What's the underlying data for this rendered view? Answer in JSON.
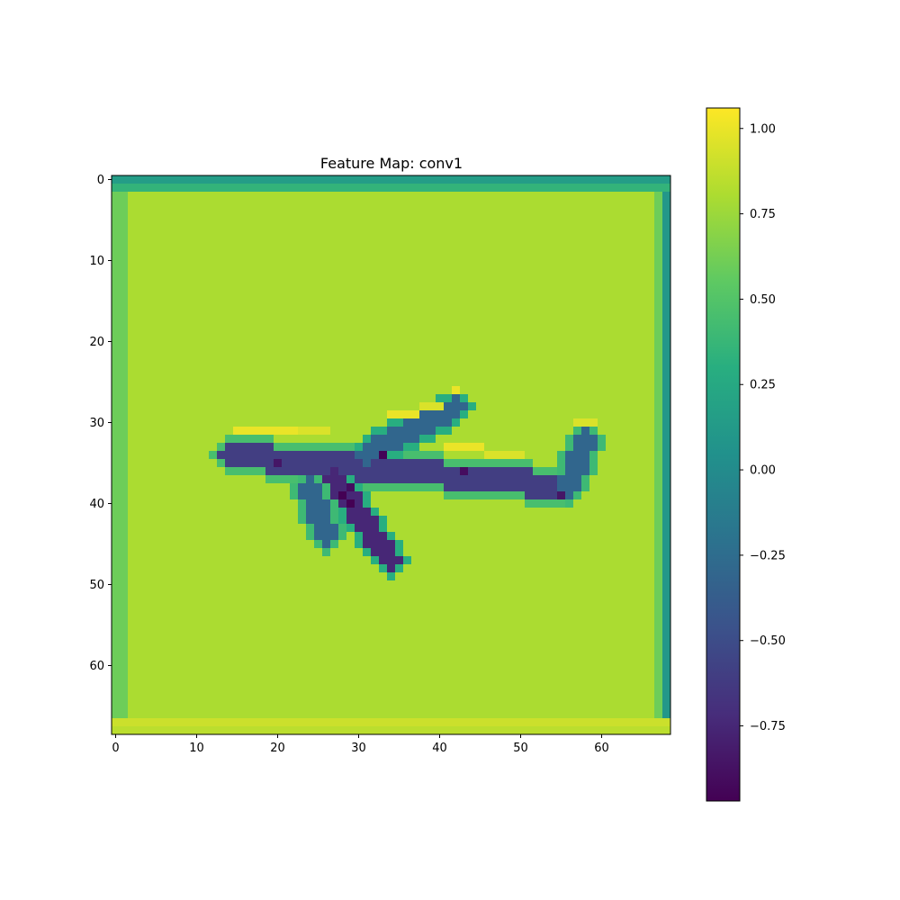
{
  "chart_data": {
    "type": "heatmap",
    "title": "Feature Map: conv1",
    "xlabel": "",
    "ylabel": "",
    "grid": false,
    "colormap": "viridis",
    "shape": [
      69,
      69
    ],
    "xlim": [
      -0.5,
      68.5
    ],
    "ylim": [
      68.5,
      -0.5
    ],
    "x_ticks": [
      0,
      10,
      20,
      30,
      40,
      50,
      60
    ],
    "y_ticks": [
      0,
      10,
      20,
      30,
      40,
      50,
      60
    ],
    "x_tick_labels": [
      "0",
      "10",
      "20",
      "30",
      "40",
      "50",
      "60"
    ],
    "y_tick_labels": [
      "0",
      "10",
      "20",
      "30",
      "40",
      "50",
      "60"
    ],
    "colorbar": {
      "range": [
        -0.97,
        1.06
      ],
      "ticks": [
        1.0,
        0.75,
        0.5,
        0.25,
        0.0,
        -0.25,
        -0.5,
        -0.75
      ],
      "tick_labels": [
        "1.00",
        "0.75",
        "0.50",
        "0.25",
        "0.00",
        "−0.25",
        "−0.50",
        "−0.75"
      ]
    },
    "background_value": 0.8,
    "border_values": {
      "top_row_0": 0.15,
      "top_row_1": 0.35,
      "left_cols_0_1": 0.6,
      "right_col_67": 0.6,
      "right_col_68": 0.1,
      "bottom_row_67": 0.9,
      "bottom_row_68": 0.85
    },
    "object": "airplane silhouette",
    "object_regions": [
      {
        "part": "fuselage",
        "from": [
          14,
          34
        ],
        "to": [
          56,
          38
        ],
        "value": -0.6,
        "halo_value": 0.45,
        "highlight_value": 1.0
      },
      {
        "part": "upper wing",
        "from": [
          31,
          34
        ],
        "to": [
          42,
          28
        ],
        "value": -0.3,
        "halo_value": 0.3,
        "highlight_value": 1.0
      },
      {
        "part": "lower wing",
        "from": [
          27,
          37
        ],
        "to": [
          34,
          47
        ],
        "value": -0.75,
        "halo_value": 0.3
      },
      {
        "part": "rear stabilizer",
        "from": [
          24,
          38
        ],
        "to": [
          26,
          44
        ],
        "value": -0.3,
        "halo_value": 0.4
      },
      {
        "part": "tail fin",
        "from": [
          56,
          38
        ],
        "to": [
          58,
          32
        ],
        "value": -0.3,
        "halo_value": 0.4,
        "highlight_value": 0.95
      }
    ]
  }
}
